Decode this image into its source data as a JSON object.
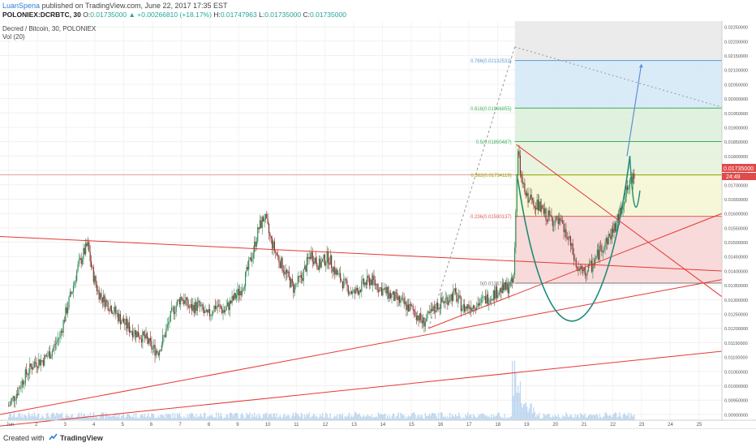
{
  "header": {
    "user": "LuanSpena",
    "published": "published on TradingView.com, June 22, 2017 17:35 EST",
    "symbol": "POLONIEX:DCRBTC, 30",
    "ohlc_prefix": "O:",
    "open": "0.01735000",
    "change": "▲ +0.00266810 (+18.17%)",
    "high_prefix": "H:",
    "high": "0.01747963",
    "low_prefix": "L:",
    "low": "0.01735000",
    "close_prefix": "C:",
    "close": "0.01735000"
  },
  "legend": {
    "name": "Decred / Bitcoin, 30, POLONIEX",
    "volume": "Vol (20)"
  },
  "price_tag": {
    "value": "0.01735000",
    "sub": "24:49"
  },
  "footer": {
    "created_with": "Created with",
    "brand": "TradingView"
  },
  "fib_levels": [
    {
      "label": "0.786(0.02132532)",
      "value": 0.02132532,
      "color": "#5b9bd5"
    },
    {
      "label": "0.618(0.01966855)",
      "value": 0.01966855,
      "color": "#3fae5a"
    },
    {
      "label": "0.5(0.01850487)",
      "value": 0.01850487,
      "color": "#3fae5a"
    },
    {
      "label": "0.382(0.01734119)",
      "value": 0.01734119,
      "color": "#8fa600"
    },
    {
      "label": "0.236(0.01590137)",
      "value": 0.01590137,
      "color": "#e05a5a"
    },
    {
      "label": "0(0.01357400)",
      "value": 0.013574,
      "color": "#777777"
    }
  ],
  "chart_data": {
    "type": "candlestick",
    "title": "Decred / Bitcoin, 30, POLONIEX",
    "x_ticks": [
      "Jun",
      "2",
      "3",
      "4",
      "5",
      "6",
      "7",
      "8",
      "9",
      "10",
      "11",
      "12",
      "13",
      "14",
      "15",
      "16",
      "17",
      "18",
      "19",
      "20",
      "21",
      "22",
      "23",
      "24",
      "25"
    ],
    "y_ticks": [
      "0.02250000",
      "0.02200000",
      "0.02150000",
      "0.02100000",
      "0.02050000",
      "0.02000000",
      "0.01950000",
      "0.01900000",
      "0.01850000",
      "0.01800000",
      "0.01750000",
      "0.01700000",
      "0.01650000",
      "0.01600000",
      "0.01550000",
      "0.01500000",
      "0.01450000",
      "0.01400000",
      "0.01350000",
      "0.01300000",
      "0.01250000",
      "0.01200000",
      "0.01150000",
      "0.01100000",
      "0.01050000",
      "0.01000000",
      "0.00950000",
      "0.00900000"
    ],
    "ylim": [
      0.0088,
      0.0227
    ],
    "xlim_days": [
      0.7,
      25.8
    ],
    "grid": true,
    "price_path": [
      [
        1.0,
        0.0093
      ],
      [
        1.3,
        0.0098
      ],
      [
        1.6,
        0.0104
      ],
      [
        1.9,
        0.0108
      ],
      [
        2.2,
        0.0109
      ],
      [
        2.5,
        0.0112
      ],
      [
        2.8,
        0.0118
      ],
      [
        3.0,
        0.0126
      ],
      [
        3.2,
        0.0133
      ],
      [
        3.4,
        0.0141
      ],
      [
        3.6,
        0.0146
      ],
      [
        3.75,
        0.0149
      ],
      [
        3.9,
        0.014
      ],
      [
        4.1,
        0.0133
      ],
      [
        4.3,
        0.013
      ],
      [
        4.6,
        0.0127
      ],
      [
        4.9,
        0.0123
      ],
      [
        5.2,
        0.012
      ],
      [
        5.5,
        0.0118
      ],
      [
        5.8,
        0.0116
      ],
      [
        6.0,
        0.0113
      ],
      [
        6.2,
        0.0112
      ],
      [
        6.4,
        0.0117
      ],
      [
        6.7,
        0.0126
      ],
      [
        7.0,
        0.0131
      ],
      [
        7.3,
        0.0127
      ],
      [
        7.6,
        0.0128
      ],
      [
        7.9,
        0.0124
      ],
      [
        8.2,
        0.0128
      ],
      [
        8.5,
        0.0126
      ],
      [
        8.8,
        0.013
      ],
      [
        9.1,
        0.0134
      ],
      [
        9.3,
        0.014
      ],
      [
        9.5,
        0.0147
      ],
      [
        9.7,
        0.0155
      ],
      [
        9.9,
        0.0159
      ],
      [
        10.1,
        0.0151
      ],
      [
        10.3,
        0.0146
      ],
      [
        10.6,
        0.014
      ],
      [
        10.9,
        0.0134
      ],
      [
        11.2,
        0.0138
      ],
      [
        11.5,
        0.0146
      ],
      [
        11.8,
        0.0142
      ],
      [
        12.1,
        0.0145
      ],
      [
        12.4,
        0.0139
      ],
      [
        12.7,
        0.0135
      ],
      [
        13.0,
        0.0132
      ],
      [
        13.3,
        0.0135
      ],
      [
        13.6,
        0.0137
      ],
      [
        13.9,
        0.0134
      ],
      [
        14.2,
        0.0132
      ],
      [
        14.5,
        0.013
      ],
      [
        14.8,
        0.0128
      ],
      [
        15.1,
        0.0126
      ],
      [
        15.4,
        0.0122
      ],
      [
        15.6,
        0.0124
      ],
      [
        15.9,
        0.0128
      ],
      [
        16.2,
        0.013
      ],
      [
        16.5,
        0.0132
      ],
      [
        16.8,
        0.0127
      ],
      [
        17.1,
        0.0128
      ],
      [
        17.4,
        0.0129
      ],
      [
        17.7,
        0.0131
      ],
      [
        18.0,
        0.0133
      ],
      [
        18.3,
        0.0134
      ],
      [
        18.55,
        0.0136
      ],
      [
        18.7,
        0.0182
      ],
      [
        18.85,
        0.017
      ],
      [
        19.0,
        0.0166
      ],
      [
        19.3,
        0.0164
      ],
      [
        19.6,
        0.016
      ],
      [
        19.9,
        0.0158
      ],
      [
        20.2,
        0.0156
      ],
      [
        20.5,
        0.015
      ],
      [
        20.75,
        0.0141
      ],
      [
        21.0,
        0.0139
      ],
      [
        21.3,
        0.0142
      ],
      [
        21.6,
        0.0148
      ],
      [
        21.9,
        0.0152
      ],
      [
        22.15,
        0.0157
      ],
      [
        22.3,
        0.0162
      ],
      [
        22.45,
        0.0167
      ],
      [
        22.6,
        0.017
      ],
      [
        22.75,
        0.0174
      ]
    ],
    "annotations": {
      "cup_curve": true,
      "projection_arrow": true,
      "trendlines": 5
    }
  }
}
